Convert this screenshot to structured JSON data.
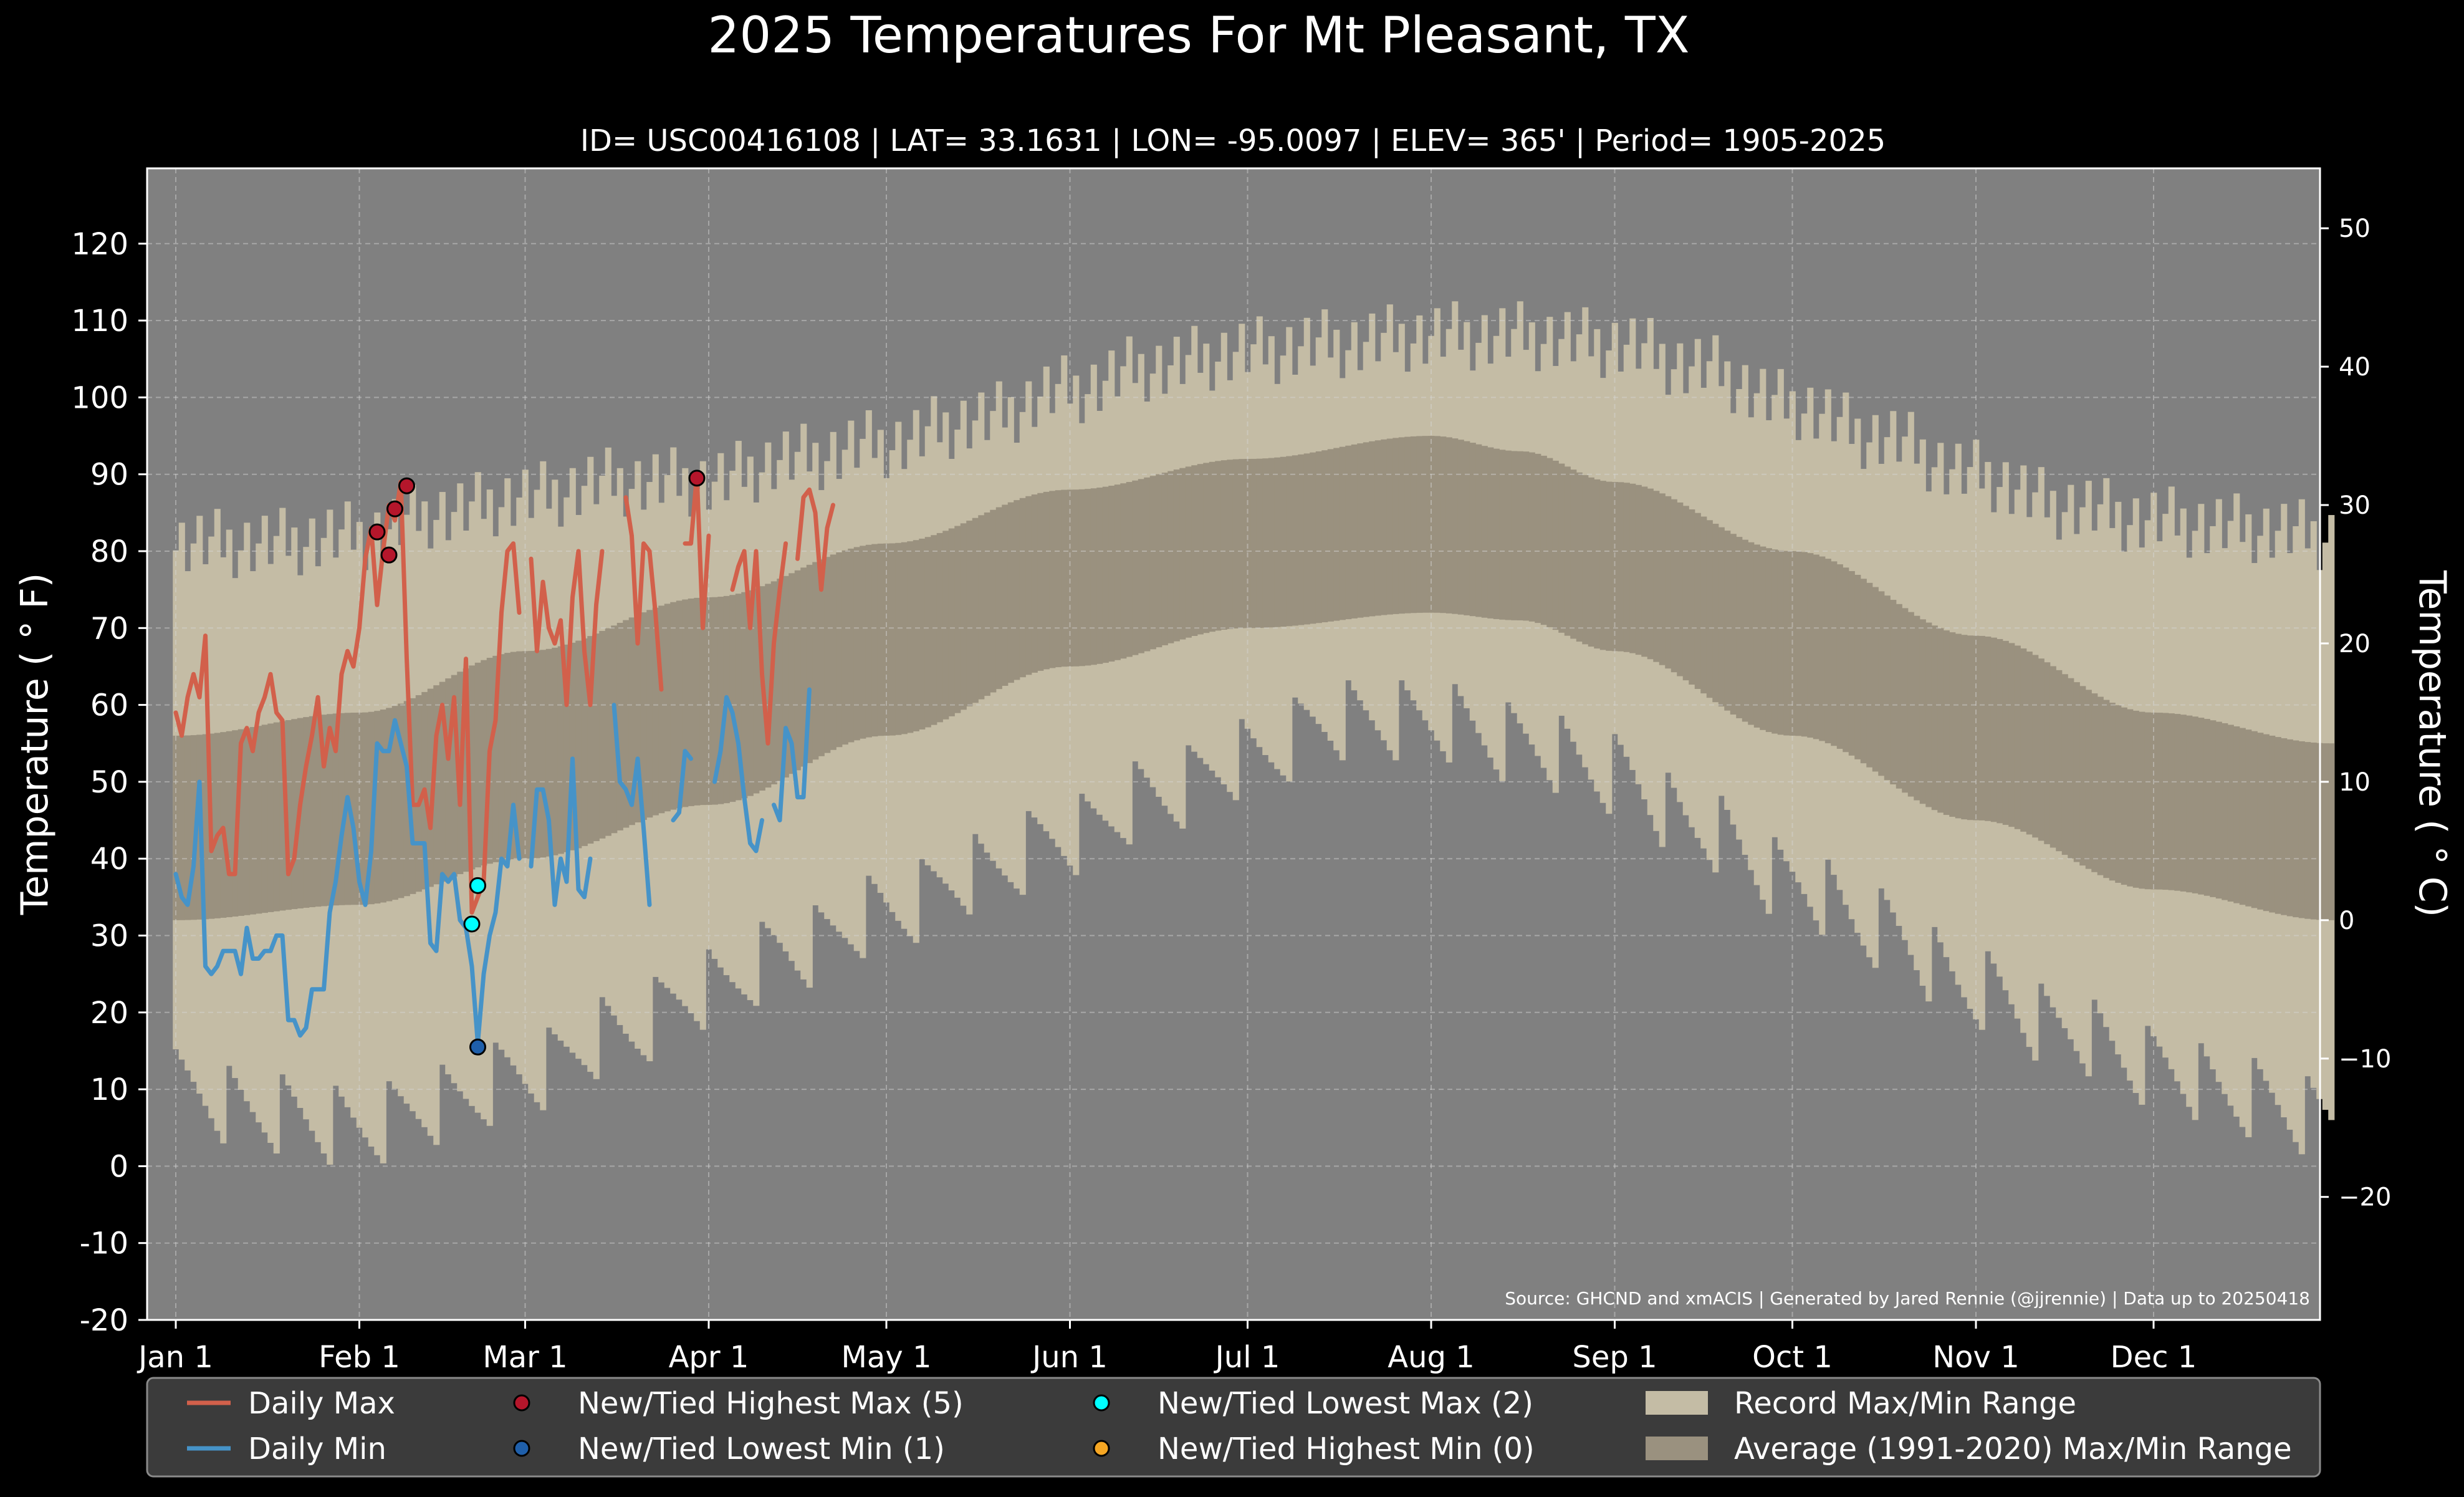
{
  "chart_data": {
    "type": "line",
    "title": "2025 Temperatures For Mt Pleasant, TX",
    "subtitle": "ID= USC00416108 | LAT= 33.1631 | LON= -95.0097 | ELEV= 365' | Period= 1905-2025",
    "ylabel_left": "Temperature ( ° F)",
    "ylabel_right": "Temperature ( ° C)",
    "source": "Source: GHCND and xmACIS | Generated by Jared Rennie (@jjrennie) | Data up to 20250418",
    "ylim_f": [
      -20,
      130
    ],
    "yticks_f": [
      "-20",
      "-10",
      "0",
      "10",
      "20",
      "30",
      "40",
      "50",
      "60",
      "70",
      "80",
      "90",
      "100",
      "110",
      "120"
    ],
    "yticks_c": [
      "−20",
      "−10",
      "0",
      "10",
      "20",
      "30",
      "40",
      "50"
    ],
    "xticks": [
      "Jan 1",
      "Feb 1",
      "Mar 1",
      "Apr 1",
      "May 1",
      "Jun 1",
      "Jul 1",
      "Aug 1",
      "Sep 1",
      "Oct 1",
      "Nov 1",
      "Dec 1"
    ],
    "grid": true,
    "legend_position": "below plot",
    "colors": {
      "background": "#000000",
      "plot_bg": "#808080",
      "record_band": "#c4bca5",
      "average_band": "#9a917f",
      "daily_max": "#d2604b",
      "daily_min": "#4693c8",
      "new_highest_max": "#b5162b",
      "new_lowest_min": "#1f5faa",
      "new_lowest_max": "#00ffff",
      "new_highest_min": "#f5a623",
      "legend_bg": "#3b3b3b"
    },
    "record_anchors": [
      {
        "day": 1,
        "max": 81,
        "min": 10
      },
      {
        "day": 15,
        "max": 81,
        "min": 7
      },
      {
        "day": 32,
        "max": 82,
        "min": 5
      },
      {
        "day": 46,
        "max": 85,
        "min": 8
      },
      {
        "day": 60,
        "max": 87,
        "min": 12
      },
      {
        "day": 75,
        "max": 89,
        "min": 17
      },
      {
        "day": 91,
        "max": 89,
        "min": 23
      },
      {
        "day": 105,
        "max": 92,
        "min": 28
      },
      {
        "day": 121,
        "max": 94,
        "min": 33
      },
      {
        "day": 136,
        "max": 97,
        "min": 38
      },
      {
        "day": 152,
        "max": 101,
        "min": 43
      },
      {
        "day": 166,
        "max": 104,
        "min": 48
      },
      {
        "day": 182,
        "max": 106,
        "min": 53
      },
      {
        "day": 197,
        "max": 107,
        "min": 58
      },
      {
        "day": 213,
        "max": 108,
        "min": 58
      },
      {
        "day": 228,
        "max": 108,
        "min": 55
      },
      {
        "day": 244,
        "max": 107,
        "min": 51
      },
      {
        "day": 258,
        "max": 104,
        "min": 44
      },
      {
        "day": 274,
        "max": 99,
        "min": 37
      },
      {
        "day": 288,
        "max": 95,
        "min": 31
      },
      {
        "day": 305,
        "max": 90,
        "min": 23
      },
      {
        "day": 319,
        "max": 86,
        "min": 18
      },
      {
        "day": 335,
        "max": 84,
        "min": 13
      },
      {
        "day": 350,
        "max": 83,
        "min": 9
      },
      {
        "day": 365,
        "max": 82,
        "min": 6
      }
    ],
    "average_anchors": [
      {
        "day": 1,
        "max": 56,
        "min": 32
      },
      {
        "day": 32,
        "max": 59,
        "min": 34
      },
      {
        "day": 60,
        "max": 67,
        "min": 40
      },
      {
        "day": 91,
        "max": 74,
        "min": 47
      },
      {
        "day": 121,
        "max": 81,
        "min": 56
      },
      {
        "day": 152,
        "max": 88,
        "min": 65
      },
      {
        "day": 182,
        "max": 92,
        "min": 70
      },
      {
        "day": 213,
        "max": 95,
        "min": 72
      },
      {
        "day": 228,
        "max": 93,
        "min": 71
      },
      {
        "day": 244,
        "max": 89,
        "min": 67
      },
      {
        "day": 274,
        "max": 80,
        "min": 56
      },
      {
        "day": 305,
        "max": 69,
        "min": 45
      },
      {
        "day": 335,
        "max": 59,
        "min": 36
      },
      {
        "day": 365,
        "max": 55,
        "min": 32
      }
    ],
    "series": [
      {
        "name": "Daily Max",
        "segments": [
          [
            [
              1,
              59
            ],
            [
              2,
              56
            ],
            [
              3,
              61
            ],
            [
              4,
              64
            ],
            [
              5,
              61
            ],
            [
              6,
              69
            ],
            [
              7,
              41
            ],
            [
              8,
              43
            ],
            [
              9,
              44
            ],
            [
              10,
              38
            ],
            [
              11,
              38
            ],
            [
              12,
              55
            ],
            [
              13,
              57
            ],
            [
              14,
              54
            ],
            [
              15,
              59
            ],
            [
              16,
              61
            ],
            [
              17,
              64
            ],
            [
              18,
              59
            ],
            [
              19,
              58
            ],
            [
              20,
              38
            ],
            [
              21,
              40
            ],
            [
              22,
              47
            ],
            [
              23,
              52
            ],
            [
              24,
              56
            ],
            [
              25,
              61
            ],
            [
              26,
              52
            ],
            [
              27,
              57
            ],
            [
              28,
              54
            ],
            [
              29,
              64
            ],
            [
              30,
              67
            ],
            [
              31,
              65
            ],
            [
              32,
              70
            ],
            [
              33,
              79
            ],
            [
              34,
              83
            ],
            [
              35,
              73
            ],
            [
              36,
              80
            ],
            [
              37,
              86
            ],
            [
              38,
              84
            ],
            [
              39,
              89
            ],
            [
              40,
              66
            ],
            [
              41,
              47
            ],
            [
              42,
              47
            ],
            [
              43,
              49
            ],
            [
              44,
              44
            ],
            [
              45,
              56
            ],
            [
              46,
              60
            ],
            [
              47,
              53
            ],
            [
              48,
              61
            ],
            [
              49,
              47
            ],
            [
              50,
              66
            ],
            [
              51,
              33
            ],
            [
              52,
              35
            ],
            [
              53,
              37
            ],
            [
              54,
              54
            ],
            [
              55,
              58
            ],
            [
              56,
              72
            ],
            [
              57,
              80
            ],
            [
              58,
              81
            ],
            [
              59,
              72
            ]
          ],
          [
            [
              61,
              79
            ],
            [
              62,
              67
            ],
            [
              63,
              76
            ],
            [
              64,
              70
            ],
            [
              65,
              68
            ],
            [
              66,
              71
            ],
            [
              67,
              60
            ],
            [
              68,
              74
            ],
            [
              69,
              80
            ],
            [
              70,
              67
            ],
            [
              71,
              60
            ],
            [
              72,
              73
            ],
            [
              73,
              80
            ]
          ],
          [
            [
              77,
              87
            ],
            [
              78,
              82
            ],
            [
              79,
              68
            ],
            [
              80,
              81
            ],
            [
              81,
              80
            ],
            [
              82,
              72
            ],
            [
              83,
              62
            ]
          ],
          [
            [
              87,
              81
            ],
            [
              88,
              81
            ],
            [
              89,
              90
            ],
            [
              90,
              70
            ],
            [
              91,
              82
            ]
          ],
          [
            [
              95,
              75
            ],
            [
              96,
              78
            ],
            [
              97,
              80
            ],
            [
              98,
              70
            ],
            [
              99,
              80
            ],
            [
              100,
              64
            ],
            [
              101,
              55
            ],
            [
              102,
              68
            ],
            [
              103,
              75
            ],
            [
              104,
              81
            ]
          ],
          [
            [
              106,
              79
            ],
            [
              107,
              87
            ],
            [
              108,
              88
            ],
            [
              109,
              85
            ],
            [
              110,
              75
            ],
            [
              111,
              83
            ],
            [
              112,
              86
            ]
          ]
        ]
      },
      {
        "name": "Daily Min",
        "segments": [
          [
            [
              1,
              38
            ],
            [
              2,
              35
            ],
            [
              3,
              34
            ],
            [
              4,
              39
            ],
            [
              5,
              50
            ],
            [
              6,
              26
            ],
            [
              7,
              25
            ],
            [
              8,
              26
            ],
            [
              9,
              28
            ],
            [
              10,
              28
            ],
            [
              11,
              28
            ],
            [
              12,
              25
            ],
            [
              13,
              31
            ],
            [
              14,
              27
            ],
            [
              15,
              27
            ],
            [
              16,
              28
            ],
            [
              17,
              28
            ],
            [
              18,
              30
            ],
            [
              19,
              30
            ],
            [
              20,
              19
            ],
            [
              21,
              19
            ],
            [
              22,
              17
            ],
            [
              23,
              18
            ],
            [
              24,
              23
            ],
            [
              25,
              23
            ],
            [
              26,
              23
            ],
            [
              27,
              33
            ],
            [
              28,
              37
            ],
            [
              29,
              43
            ],
            [
              30,
              48
            ],
            [
              31,
              44
            ],
            [
              32,
              37
            ],
            [
              33,
              34
            ],
            [
              34,
              41
            ],
            [
              35,
              55
            ],
            [
              36,
              54
            ],
            [
              37,
              54
            ],
            [
              38,
              58
            ],
            [
              39,
              55
            ],
            [
              40,
              52
            ],
            [
              41,
              42
            ],
            [
              42,
              42
            ],
            [
              43,
              42
            ],
            [
              44,
              29
            ],
            [
              45,
              28
            ],
            [
              46,
              38
            ],
            [
              47,
              37
            ],
            [
              48,
              38
            ],
            [
              49,
              32
            ],
            [
              50,
              31
            ],
            [
              51,
              26
            ],
            [
              52,
              16
            ],
            [
              53,
              25
            ],
            [
              54,
              30
            ],
            [
              55,
              33
            ],
            [
              56,
              40
            ],
            [
              57,
              39
            ],
            [
              58,
              47
            ],
            [
              59,
              40
            ]
          ],
          [
            [
              61,
              39
            ],
            [
              62,
              49
            ],
            [
              63,
              49
            ],
            [
              64,
              45
            ],
            [
              65,
              34
            ],
            [
              66,
              40
            ],
            [
              67,
              37
            ],
            [
              68,
              53
            ],
            [
              69,
              36
            ],
            [
              70,
              35
            ],
            [
              71,
              40
            ]
          ],
          [
            [
              75,
              60
            ],
            [
              76,
              50
            ],
            [
              77,
              49
            ],
            [
              78,
              47
            ],
            [
              79,
              53
            ],
            [
              80,
              44
            ],
            [
              81,
              34
            ]
          ],
          [
            [
              85,
              45
            ],
            [
              86,
              46
            ],
            [
              87,
              54
            ],
            [
              88,
              53
            ]
          ],
          [
            [
              92,
              50
            ],
            [
              93,
              54
            ],
            [
              94,
              61
            ],
            [
              95,
              59
            ],
            [
              96,
              55
            ],
            [
              97,
              48
            ],
            [
              98,
              42
            ],
            [
              99,
              41
            ],
            [
              100,
              45
            ]
          ],
          [
            [
              102,
              47
            ],
            [
              103,
              45
            ],
            [
              104,
              57
            ],
            [
              105,
              55
            ],
            [
              106,
              48
            ],
            [
              107,
              48
            ],
            [
              108,
              62
            ]
          ]
        ]
      }
    ],
    "markers": {
      "new_tied_highest_max": [
        [
          35,
          82.5
        ],
        [
          37,
          79.5
        ],
        [
          38,
          85.5
        ],
        [
          40,
          88.5
        ],
        [
          89,
          89.5
        ]
      ],
      "new_tied_lowest_max": [
        [
          51,
          31.5
        ],
        [
          52,
          36.5
        ]
      ],
      "new_tied_lowest_min": [
        [
          52,
          15.5
        ]
      ],
      "new_tied_highest_min": []
    },
    "legend": [
      {
        "label": "Daily Max",
        "kind": "line",
        "color_key": "daily_max"
      },
      {
        "label": "Daily Min",
        "kind": "line",
        "color_key": "daily_min"
      },
      {
        "label": "New/Tied Highest Max (5)",
        "kind": "dot",
        "color_key": "new_highest_max"
      },
      {
        "label": "New/Tied Lowest Min (1)",
        "kind": "dot",
        "color_key": "new_lowest_min"
      },
      {
        "label": "New/Tied Lowest Max (2)",
        "kind": "dot",
        "color_key": "new_lowest_max"
      },
      {
        "label": "New/Tied Highest Min (0)",
        "kind": "dot",
        "color_key": "new_highest_min"
      },
      {
        "label": "Record Max/Min Range",
        "kind": "patch",
        "color_key": "record_band"
      },
      {
        "label": "Average (1991-2020) Max/Min Range",
        "kind": "patch",
        "color_key": "average_band"
      }
    ]
  }
}
